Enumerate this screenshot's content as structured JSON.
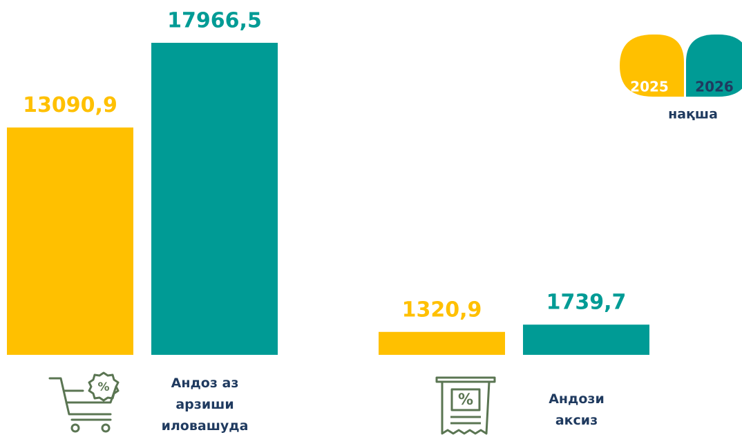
{
  "chart_data": {
    "type": "bar",
    "categories": [
      "Андоз аз\nарзиши\nиловашуда",
      "Андози\nаксиз"
    ],
    "series": [
      {
        "name": "2025",
        "color": "#FFC000",
        "values": [
          13090.9,
          1320.9
        ],
        "value_labels": [
          "13090,9",
          "1320,9"
        ]
      },
      {
        "name": "2026",
        "color": "#009B95",
        "values": [
          17966.5,
          1739.7
        ],
        "value_labels": [
          "17966,5",
          "1739,7"
        ]
      }
    ],
    "legend_title": "нақша",
    "legend": "top-right"
  }
}
